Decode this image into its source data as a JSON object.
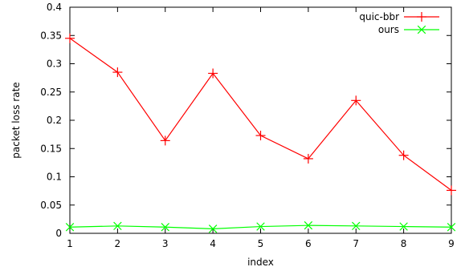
{
  "chart_data": {
    "type": "line",
    "xlabel": "index",
    "ylabel": "packet loss rate",
    "xlim": [
      1,
      9
    ],
    "ylim": [
      0,
      0.4
    ],
    "x_ticks": [
      "1",
      "2",
      "3",
      "4",
      "5",
      "6",
      "7",
      "8",
      "9"
    ],
    "y_ticks": [
      "0",
      "0.05",
      "0.1",
      "0.15",
      "0.2",
      "0.25",
      "0.3",
      "0.35",
      "0.4"
    ],
    "grid": false,
    "legend_position": "top-right",
    "x": [
      1,
      2,
      3,
      4,
      5,
      6,
      7,
      8,
      9
    ],
    "series": [
      {
        "name": "quic-bbr",
        "color": "#ff0000",
        "marker": "plus",
        "values": [
          0.345,
          0.285,
          0.164,
          0.283,
          0.173,
          0.132,
          0.235,
          0.138,
          0.076
        ]
      },
      {
        "name": "ours",
        "color": "#00ff00",
        "marker": "star",
        "values": [
          0.011,
          0.013,
          0.011,
          0.008,
          0.012,
          0.014,
          0.013,
          0.012,
          0.011
        ]
      }
    ]
  }
}
